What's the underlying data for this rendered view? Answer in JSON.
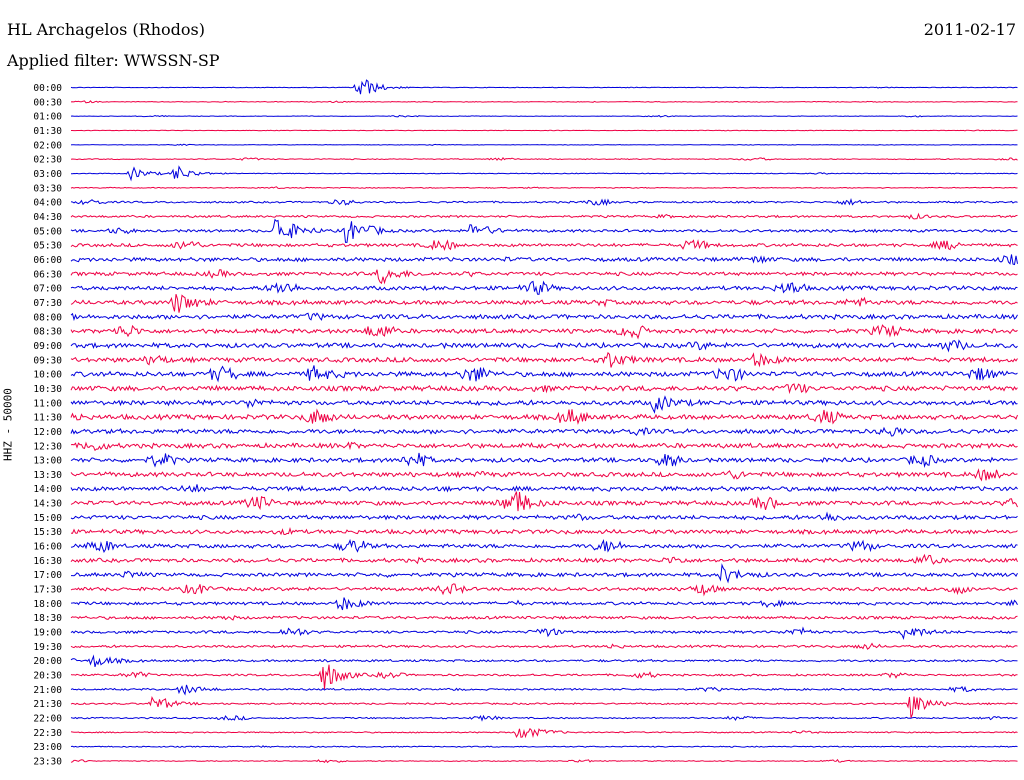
{
  "header": {
    "station": "HL Archagelos (Rhodos)",
    "date": "2011-02-17",
    "filter": "Applied filter: WWSSN-SP"
  },
  "colors": {
    "even_trace": "#0000dd",
    "odd_trace": "#ee0044"
  },
  "chart_data": {
    "type": "line",
    "title": "",
    "ylabel": "HHZ - 50000",
    "row_labels": [
      "00:00",
      "00:30",
      "01:00",
      "01:30",
      "02:00",
      "02:30",
      "03:00",
      "03:30",
      "04:00",
      "04:30",
      "05:00",
      "05:30",
      "06:00",
      "06:30",
      "07:00",
      "07:30",
      "08:00",
      "08:30",
      "09:00",
      "09:30",
      "10:00",
      "10:30",
      "11:00",
      "11:30",
      "12:00",
      "12:30",
      "13:00",
      "13:30",
      "14:00",
      "14:30",
      "15:00",
      "15:30",
      "16:00",
      "16:30",
      "17:00",
      "17:30",
      "18:00",
      "18:30",
      "19:00",
      "19:30",
      "20:00",
      "20:30",
      "21:00",
      "21:30",
      "22:00",
      "22:30",
      "23:00",
      "23:30"
    ],
    "noise_level": [
      0.3,
      0.4,
      0.3,
      0.25,
      0.3,
      0.5,
      0.4,
      0.5,
      1.0,
      1.2,
      1.5,
      1.8,
      2.2,
      2.0,
      2.3,
      2.4,
      2.5,
      2.4,
      2.6,
      2.6,
      2.7,
      2.8,
      2.6,
      2.7,
      2.5,
      2.6,
      2.4,
      2.5,
      2.5,
      2.4,
      2.3,
      2.3,
      2.2,
      2.2,
      2.1,
      1.9,
      1.7,
      1.6,
      1.5,
      1.3,
      1.2,
      1.1,
      1.0,
      0.9,
      0.8,
      0.7,
      0.6,
      0.5
    ],
    "events": [
      {
        "row": 0,
        "minute": 9.1,
        "amp": 14
      },
      {
        "row": 6,
        "minute": 1.9,
        "amp": 7
      },
      {
        "row": 6,
        "minute": 3.3,
        "amp": 9
      },
      {
        "row": 10,
        "minute": 6.5,
        "amp": 18
      },
      {
        "row": 10,
        "minute": 8.7,
        "amp": 14
      },
      {
        "row": 10,
        "minute": 12.7,
        "amp": 9
      },
      {
        "row": 13,
        "minute": 9.8,
        "amp": 10
      },
      {
        "row": 15,
        "minute": 3.3,
        "amp": 12
      },
      {
        "row": 19,
        "minute": 16.9,
        "amp": 10
      },
      {
        "row": 19,
        "minute": 21.6,
        "amp": 8
      },
      {
        "row": 20,
        "minute": 7.6,
        "amp": 9
      },
      {
        "row": 22,
        "minute": 18.5,
        "amp": 9
      },
      {
        "row": 29,
        "minute": 14.1,
        "amp": 9
      },
      {
        "row": 34,
        "minute": 20.6,
        "amp": 9
      },
      {
        "row": 36,
        "minute": 8.5,
        "amp": 8
      },
      {
        "row": 38,
        "minute": 26.4,
        "amp": 8
      },
      {
        "row": 40,
        "minute": 0.7,
        "amp": 7
      },
      {
        "row": 41,
        "minute": 8.0,
        "amp": 16
      },
      {
        "row": 42,
        "minute": 3.5,
        "amp": 6
      },
      {
        "row": 43,
        "minute": 2.6,
        "amp": 8
      },
      {
        "row": 43,
        "minute": 26.6,
        "amp": 14
      },
      {
        "row": 45,
        "minute": 14.2,
        "amp": 10
      }
    ]
  }
}
